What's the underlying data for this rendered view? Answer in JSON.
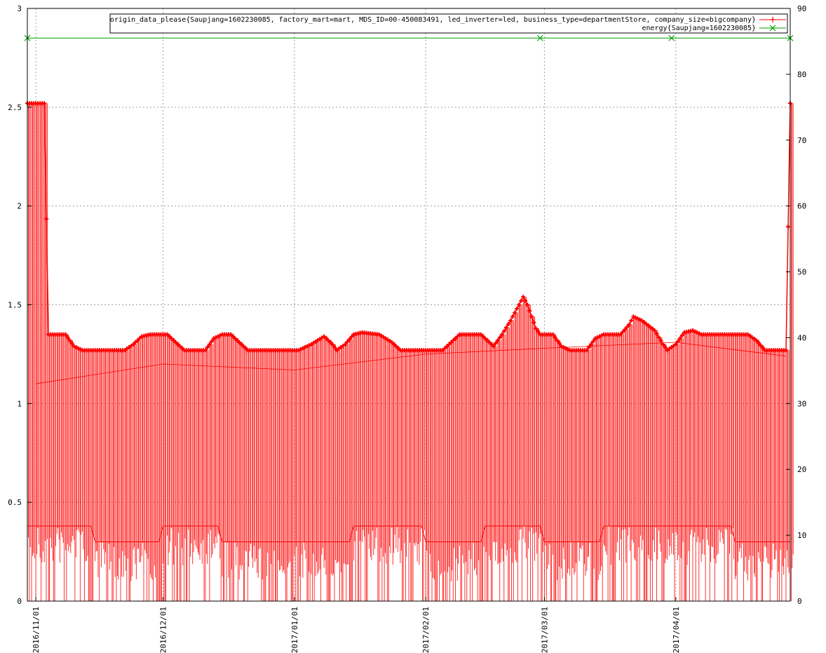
{
  "chart_data": {
    "type": "line",
    "title": "",
    "xlabel": "",
    "ylabel": "",
    "y2label": "",
    "grid": true,
    "legend_position": "top-right",
    "x_range": [
      "2016-10-30",
      "2017-04-28"
    ],
    "x_ticks": [
      "2016/11/01",
      "2016/12/01",
      "2017/01/01",
      "2017/02/01",
      "2017/03/01",
      "2017/04/01"
    ],
    "ylim": [
      0,
      3
    ],
    "y_ticks": [
      "0",
      "0.5",
      "1",
      "1.5",
      "2",
      "2.5",
      "3"
    ],
    "y2lim": [
      0,
      90
    ],
    "y2_ticks": [
      "0",
      "10",
      "20",
      "30",
      "40",
      "50",
      "60",
      "70",
      "80",
      "90"
    ],
    "series": [
      {
        "name": "origin_data_please{Saupjang=1602230085, factory_mart=mart, MDS_ID=00-450083491, led_inverter=led, business_type=departmentStore, company_size=bigcompany}",
        "color": "#ff0000",
        "marker": "+",
        "axis": "y1",
        "upper_envelope": [
          [
            "2016-10-30",
            2.52
          ],
          [
            "2016-11-03",
            2.52
          ],
          [
            "2016-11-04",
            1.35
          ],
          [
            "2016-11-08",
            1.35
          ],
          [
            "2016-11-10",
            1.29
          ],
          [
            "2016-11-12",
            1.27
          ],
          [
            "2016-11-22",
            1.27
          ],
          [
            "2016-11-24",
            1.3
          ],
          [
            "2016-11-26",
            1.34
          ],
          [
            "2016-11-28",
            1.35
          ],
          [
            "2016-12-02",
            1.35
          ],
          [
            "2016-12-04",
            1.31
          ],
          [
            "2016-12-06",
            1.27
          ],
          [
            "2016-12-11",
            1.27
          ],
          [
            "2016-12-13",
            1.33
          ],
          [
            "2016-12-15",
            1.35
          ],
          [
            "2016-12-17",
            1.35
          ],
          [
            "2016-12-19",
            1.31
          ],
          [
            "2016-12-21",
            1.27
          ],
          [
            "2017-01-02",
            1.27
          ],
          [
            "2017-01-05",
            1.3
          ],
          [
            "2017-01-08",
            1.34
          ],
          [
            "2017-01-10",
            1.3
          ],
          [
            "2017-01-11",
            1.27
          ],
          [
            "2017-01-13",
            1.3
          ],
          [
            "2017-01-15",
            1.35
          ],
          [
            "2017-01-17",
            1.36
          ],
          [
            "2017-01-21",
            1.35
          ],
          [
            "2017-01-24",
            1.31
          ],
          [
            "2017-01-26",
            1.27
          ],
          [
            "2017-02-05",
            1.27
          ],
          [
            "2017-02-07",
            1.31
          ],
          [
            "2017-02-09",
            1.35
          ],
          [
            "2017-02-14",
            1.35
          ],
          [
            "2017-02-17",
            1.29
          ],
          [
            "2017-02-19",
            1.35
          ],
          [
            "2017-02-21",
            1.42
          ],
          [
            "2017-02-23",
            1.5
          ],
          [
            "2017-02-24",
            1.54
          ],
          [
            "2017-02-25",
            1.5
          ],
          [
            "2017-02-26",
            1.44
          ],
          [
            "2017-02-27",
            1.38
          ],
          [
            "2017-02-28",
            1.35
          ],
          [
            "2017-03-03",
            1.35
          ],
          [
            "2017-03-05",
            1.29
          ],
          [
            "2017-03-07",
            1.27
          ],
          [
            "2017-03-11",
            1.27
          ],
          [
            "2017-03-13",
            1.33
          ],
          [
            "2017-03-15",
            1.35
          ],
          [
            "2017-03-19",
            1.35
          ],
          [
            "2017-03-21",
            1.4
          ],
          [
            "2017-03-22",
            1.44
          ],
          [
            "2017-03-24",
            1.42
          ],
          [
            "2017-03-27",
            1.37
          ],
          [
            "2017-03-29",
            1.3
          ],
          [
            "2017-03-30",
            1.27
          ],
          [
            "2017-04-01",
            1.3
          ],
          [
            "2017-04-03",
            1.36
          ],
          [
            "2017-04-05",
            1.37
          ],
          [
            "2017-04-07",
            1.35
          ],
          [
            "2017-04-18",
            1.35
          ],
          [
            "2017-04-20",
            1.32
          ],
          [
            "2017-04-22",
            1.27
          ],
          [
            "2017-04-27",
            1.27
          ],
          [
            "2017-04-28",
            2.52
          ]
        ],
        "lower_levels": [
          [
            "2016-11-01",
            0.38
          ],
          [
            "2016-11-15",
            0.3
          ],
          [
            "2016-12-01",
            0.38
          ],
          [
            "2016-12-15",
            0.3
          ],
          [
            "2017-01-01",
            0.3
          ],
          [
            "2017-01-15",
            0.38
          ],
          [
            "2017-02-01",
            0.3
          ],
          [
            "2017-02-15",
            0.38
          ],
          [
            "2017-03-01",
            0.3
          ],
          [
            "2017-03-15",
            0.38
          ],
          [
            "2017-04-01",
            0.38
          ],
          [
            "2017-04-15",
            0.3
          ]
        ],
        "mid_levels": [
          [
            "2016-11-01",
            1.1
          ],
          [
            "2016-12-01",
            1.2
          ],
          [
            "2017-01-01",
            1.17
          ],
          [
            "2017-02-01",
            1.25
          ],
          [
            "2017-03-01",
            1.28
          ],
          [
            "2017-04-01",
            1.31
          ],
          [
            "2017-04-27",
            1.24
          ]
        ]
      },
      {
        "name": "energy{Saupjang=1602230085}",
        "color": "#00a000",
        "marker": "x",
        "axis": "y2",
        "points": [
          [
            "2016-10-30",
            85.5
          ],
          [
            "2017-02-28",
            85.5
          ],
          [
            "2017-03-31",
            85.5
          ],
          [
            "2017-04-28",
            85.5
          ]
        ]
      }
    ]
  }
}
